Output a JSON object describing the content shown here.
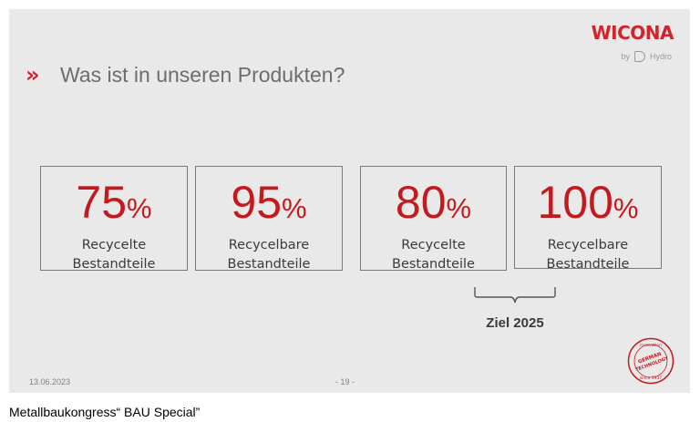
{
  "slide": {
    "brand": "WICONA",
    "by_label": "by",
    "partner": "Hydro",
    "title_marker": "»",
    "title": "Was ist in unseren Produkten?",
    "cards": [
      {
        "value": "75",
        "unit": "%",
        "line1": "Recycelte",
        "line2": "Bestandteile"
      },
      {
        "value": "95",
        "unit": "%",
        "line1": "Recycelbare",
        "line2": "Bestandteile"
      },
      {
        "value": "80",
        "unit": "%",
        "line1": "Recycelte",
        "line2": "Bestandteile"
      },
      {
        "value": "100",
        "unit": "%",
        "line1": "Recycelbare",
        "line2": "Bestandteile"
      }
    ],
    "goal_label": "Ziel 2025",
    "date": "13.06.2023",
    "page_number": "- 19 -",
    "seal": {
      "top": "innovation",
      "middle1": "GERMAN",
      "middle2": "TECHNOLOGY",
      "bottom": "since 1937"
    }
  },
  "caption": "Metallbaukongress“ BAU Special”",
  "colors": {
    "accent_red": "#c21a1f",
    "slide_bg": "#e9e9e9",
    "title_gray": "#6d6d6d"
  }
}
